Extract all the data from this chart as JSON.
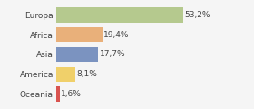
{
  "categories": [
    "Europa",
    "Africa",
    "Asia",
    "America",
    "Oceania"
  ],
  "values": [
    53.2,
    19.4,
    17.7,
    8.1,
    1.6
  ],
  "labels": [
    "53,2%",
    "19,4%",
    "17,7%",
    "8,1%",
    "1,6%"
  ],
  "bar_colors": [
    "#b5c98e",
    "#e9b07a",
    "#7b93c0",
    "#f0d06a",
    "#d9534f"
  ],
  "background_color": "#f5f5f5",
  "xlim": [
    0,
    70
  ],
  "label_fontsize": 6.5,
  "tick_fontsize": 6.5,
  "bar_height": 0.75
}
